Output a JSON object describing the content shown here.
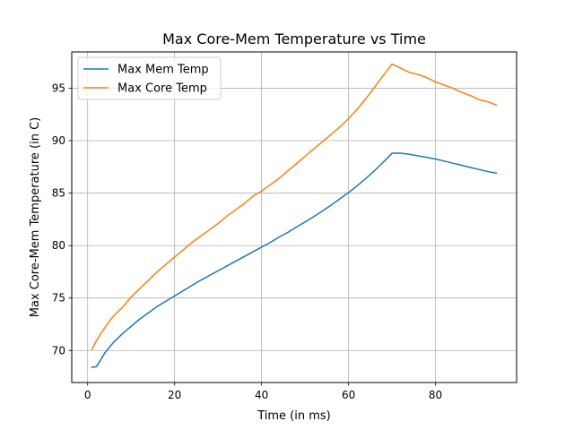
{
  "chart_data": {
    "type": "line",
    "title": "Max Core-Mem Temperature vs Time",
    "xlabel": "Time (in ms)",
    "ylabel": "Max Core-Mem Temperature (in C)",
    "xlim": [
      -3.65,
      98.65
    ],
    "ylim": [
      66.95,
      98.45
    ],
    "xticks": [
      0,
      20,
      40,
      60,
      80
    ],
    "xtick_labels": [
      "0",
      "20",
      "40",
      "60",
      "80"
    ],
    "yticks": [
      70,
      75,
      80,
      85,
      90,
      95
    ],
    "ytick_labels": [
      "70",
      "75",
      "80",
      "85",
      "90",
      "95"
    ],
    "grid": true,
    "legend_position": "top-left",
    "series": [
      {
        "name": "Max Mem Temp",
        "color": "#1f77b4",
        "x": [
          1,
          2,
          3,
          4,
          5,
          6,
          8,
          10,
          12,
          14,
          16,
          18,
          20,
          22,
          24,
          26,
          28,
          30,
          32,
          34,
          36,
          38,
          40,
          42,
          44,
          46,
          48,
          50,
          52,
          54,
          56,
          58,
          60,
          62,
          64,
          66,
          68,
          70,
          72,
          74,
          76,
          78,
          80,
          82,
          84,
          86,
          88,
          90,
          92,
          94
        ],
        "y": [
          68.4,
          68.45,
          69.1,
          69.8,
          70.3,
          70.8,
          71.6,
          72.3,
          73.0,
          73.6,
          74.2,
          74.7,
          75.2,
          75.7,
          76.2,
          76.7,
          77.15,
          77.6,
          78.05,
          78.5,
          78.95,
          79.4,
          79.85,
          80.3,
          80.8,
          81.25,
          81.75,
          82.25,
          82.75,
          83.3,
          83.85,
          84.45,
          85.05,
          85.7,
          86.4,
          87.15,
          87.95,
          88.8,
          88.8,
          88.7,
          88.55,
          88.4,
          88.25,
          88.05,
          87.85,
          87.65,
          87.45,
          87.25,
          87.05,
          86.9
        ]
      },
      {
        "name": "Max Core Temp",
        "color": "#ff7f0e",
        "x": [
          1,
          2,
          3,
          4,
          5,
          6,
          8,
          10,
          12,
          14,
          16,
          18,
          20,
          22,
          24,
          26,
          28,
          30,
          32,
          34,
          36,
          38,
          40,
          42,
          44,
          46,
          48,
          50,
          52,
          54,
          56,
          58,
          60,
          62,
          64,
          66,
          68,
          70,
          71,
          72,
          73,
          74,
          75,
          76,
          78,
          80,
          82,
          84,
          86,
          88,
          90,
          92,
          94
        ],
        "y": [
          70.1,
          70.9,
          71.6,
          72.2,
          72.8,
          73.3,
          74.1,
          75.1,
          75.9,
          76.7,
          77.5,
          78.2,
          78.9,
          79.6,
          80.3,
          80.9,
          81.5,
          82.1,
          82.8,
          83.4,
          84.0,
          84.7,
          85.2,
          85.8,
          86.4,
          87.1,
          87.8,
          88.5,
          89.2,
          89.9,
          90.6,
          91.3,
          92.1,
          93.0,
          94.0,
          95.1,
          96.2,
          97.3,
          97.1,
          96.9,
          96.7,
          96.5,
          96.4,
          96.3,
          96.0,
          95.6,
          95.3,
          95.0,
          94.6,
          94.3,
          93.9,
          93.7,
          93.4
        ]
      }
    ]
  }
}
